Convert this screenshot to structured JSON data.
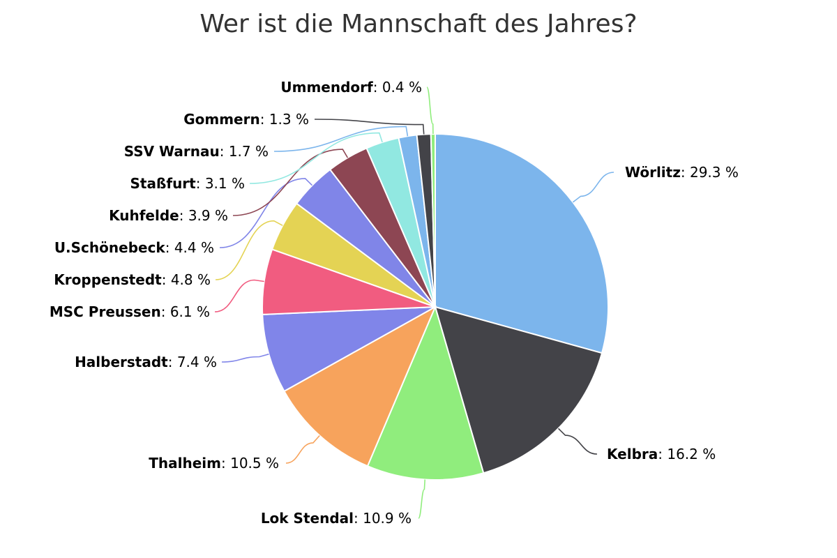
{
  "chart_data": {
    "type": "pie",
    "title": "Wer ist die Mannschaft des Jahres?",
    "unit": "%",
    "slices": [
      {
        "name": "Wörlitz",
        "value": 29.3,
        "color": "#7cb5ec"
      },
      {
        "name": "Kelbra",
        "value": 16.2,
        "color": "#434348"
      },
      {
        "name": "Lok Stendal",
        "value": 10.9,
        "color": "#90ed7d"
      },
      {
        "name": "Thalheim",
        "value": 10.5,
        "color": "#f7a35c"
      },
      {
        "name": "Halberstadt",
        "value": 7.4,
        "color": "#8085e9"
      },
      {
        "name": "MSC Preussen",
        "value": 6.1,
        "color": "#f15c80"
      },
      {
        "name": "Kroppenstedt",
        "value": 4.8,
        "color": "#e4d354"
      },
      {
        "name": "U.Schönebeck",
        "value": 4.4,
        "color": "#8085e8"
      },
      {
        "name": "Kuhfelde",
        "value": 3.9,
        "color": "#8d4653"
      },
      {
        "name": "Staßfurt",
        "value": 3.1,
        "color": "#91e8e1"
      },
      {
        "name": "SSV Warnau",
        "value": 1.7,
        "color": "#7cb5ec"
      },
      {
        "name": "Gommern",
        "value": 1.3,
        "color": "#434348"
      },
      {
        "name": "Ummendorf",
        "value": 0.4,
        "color": "#90ed7d"
      }
    ]
  }
}
